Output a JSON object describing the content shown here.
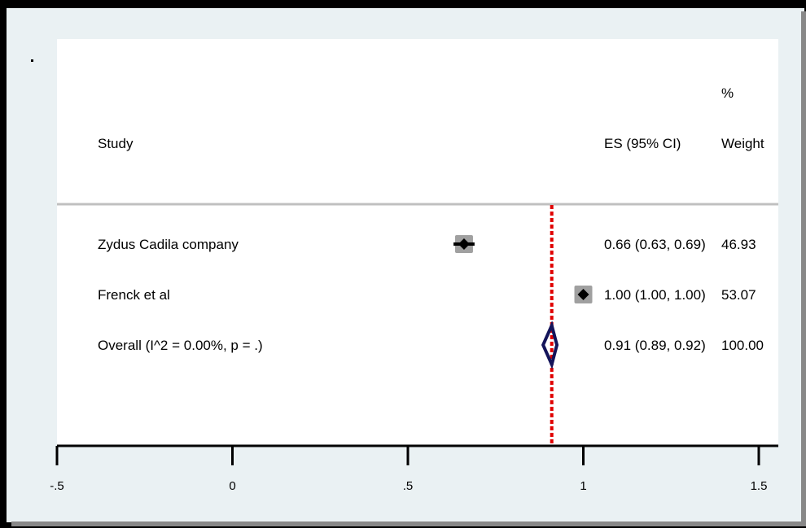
{
  "chart_data": {
    "type": "forest",
    "title": "",
    "xlabel": "",
    "ylabel": "",
    "xlim": [
      -0.5,
      1.5
    ],
    "x_ticks": [
      "-.5",
      "0",
      ".5",
      "1",
      "1.5"
    ],
    "x_tick_values": [
      -0.5,
      0,
      0.5,
      1,
      1.5
    ],
    "header": {
      "study": "Study",
      "es": "ES (95% CI)",
      "weight_top": "%",
      "weight": "Weight"
    },
    "studies": [
      {
        "name": "Zydus Cadila company",
        "es": 0.66,
        "lower": 0.63,
        "upper": 0.69,
        "es_text": "0.66 (0.63, 0.69)",
        "weight": "46.93"
      },
      {
        "name": "Frenck et al",
        "es": 1.0,
        "lower": 1.0,
        "upper": 1.0,
        "es_text": "1.00 (1.00, 1.00)",
        "weight": "53.07"
      }
    ],
    "overall": {
      "name": "Overall  (I^2 = 0.00%, p = .)",
      "es": 0.91,
      "lower": 0.89,
      "upper": 0.92,
      "es_text": "0.91 (0.89, 0.92)",
      "weight": "100.00"
    },
    "colors": {
      "marker": "#000000",
      "weight_box": "#a0a0a0",
      "overall_diamond": "#14145a",
      "overall_line": "#e00000",
      "separator": "#c0c0c0",
      "frame_bg": "#eaf1f3",
      "plot_bg": "#ffffff"
    }
  }
}
